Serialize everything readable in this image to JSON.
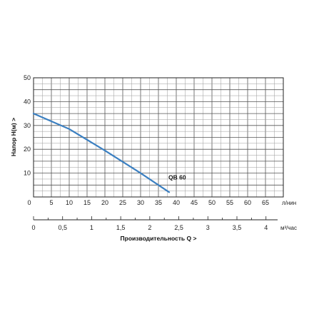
{
  "chart_data": {
    "type": "line",
    "x_unit": "л/нин",
    "ylabel": "Напор    H(м)  >",
    "xlim": [
      0,
      70
    ],
    "ylim": [
      0,
      50
    ],
    "x_ticks": [
      "0",
      "5",
      "10",
      "15",
      "20",
      "25",
      "30",
      "35",
      "40",
      "45",
      "50",
      "55",
      "60",
      "65"
    ],
    "y_ticks": [
      "10",
      "20",
      "30",
      "40",
      "50"
    ],
    "secondary_x": {
      "label": "Производительность Q  >",
      "unit": "м³/час",
      "range": [
        0,
        4.2
      ],
      "ticks": [
        "0",
        "0,5",
        "1",
        "1,5",
        "2",
        "2,5",
        "3",
        "3,5",
        "4"
      ],
      "tick_values": [
        0,
        0.5,
        1,
        1.5,
        2,
        2.5,
        3,
        3.5,
        4
      ]
    },
    "series": [
      {
        "name": "QB 60",
        "color": "#3a7fc1",
        "points": [
          [
            0,
            35
          ],
          [
            10,
            28.5
          ],
          [
            20,
            19.5
          ],
          [
            30,
            10
          ],
          [
            38,
            2
          ]
        ]
      }
    ],
    "grid": true
  }
}
